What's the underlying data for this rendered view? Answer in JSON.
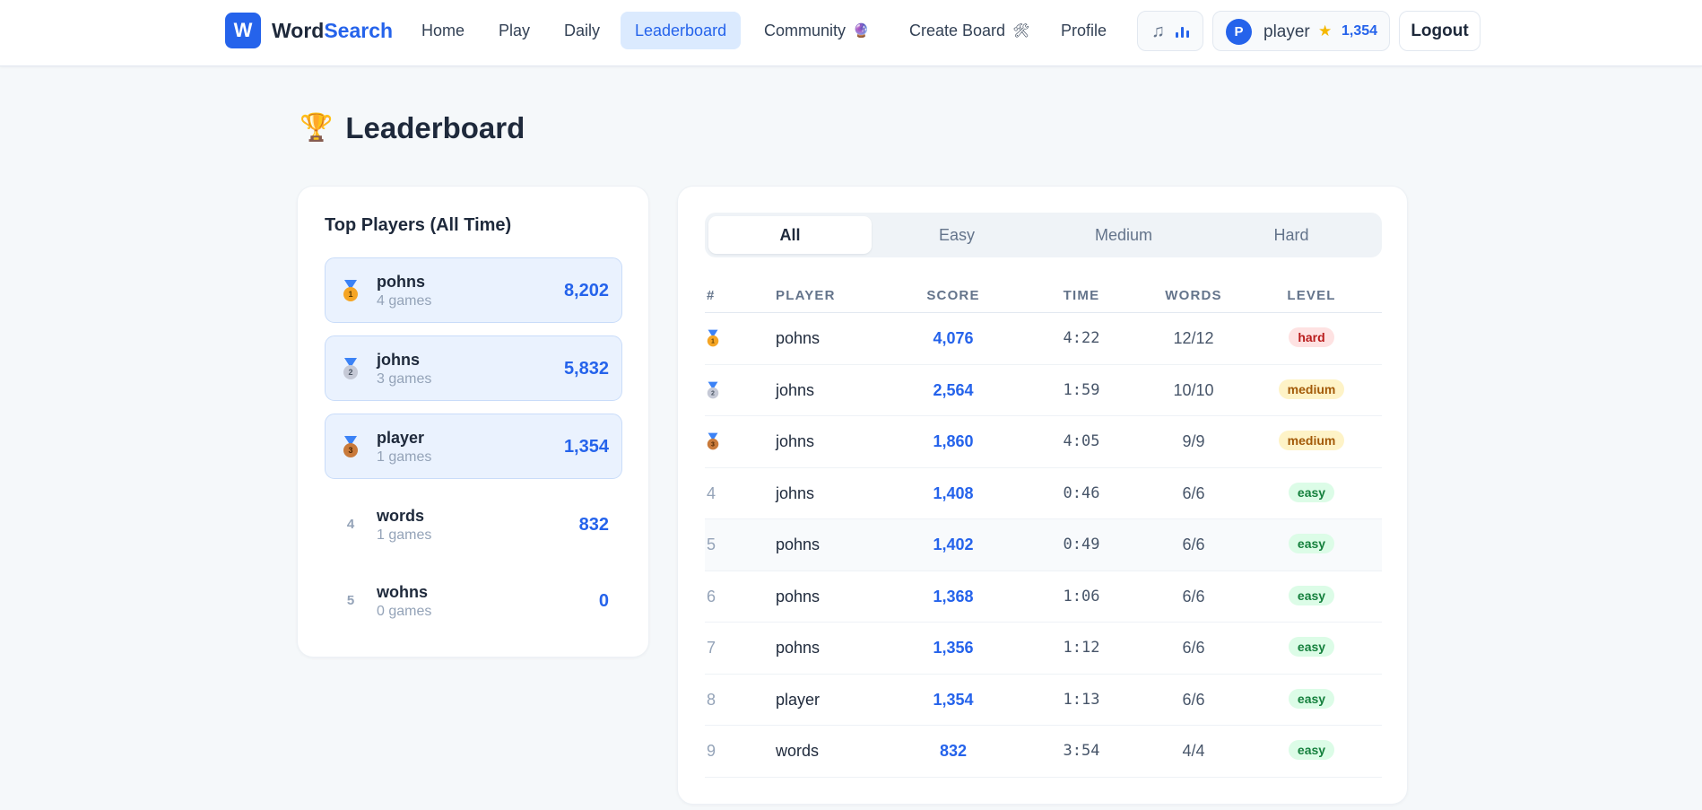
{
  "app": {
    "logo_letter": "W",
    "name_part1": "Word",
    "name_part2": "Search",
    "brand_color": "#2563eb"
  },
  "nav": {
    "items": [
      {
        "label": "Home",
        "emoji": ""
      },
      {
        "label": "Play",
        "emoji": ""
      },
      {
        "label": "Daily",
        "emoji": ""
      },
      {
        "label": "Leaderboard",
        "emoji": "",
        "active": true
      },
      {
        "label": "Community",
        "emoji": "🔮"
      },
      {
        "label": "Create Board",
        "emoji": "🛠"
      },
      {
        "label": "Profile",
        "emoji": ""
      }
    ],
    "music_icon": "music-note-icon",
    "equalizer_icon": "equalizer-icon"
  },
  "user": {
    "avatar_letter": "P",
    "name": "player",
    "star_icon": "star-icon",
    "score": "1,354"
  },
  "logout_label": "Logout",
  "page": {
    "title": "Leaderboard",
    "icon": "trophy-icon"
  },
  "top_players": {
    "title": "Top Players (All Time)",
    "items": [
      {
        "rank": "1",
        "medal": "gold",
        "name": "pohns",
        "games": "4 games",
        "score": "8,202"
      },
      {
        "rank": "2",
        "medal": "silver",
        "name": "johns",
        "games": "3 games",
        "score": "5,832"
      },
      {
        "rank": "3",
        "medal": "bronze",
        "name": "player",
        "games": "1 games",
        "score": "1,354"
      },
      {
        "rank": "4",
        "medal": "",
        "name": "words",
        "games": "1 games",
        "score": "832"
      },
      {
        "rank": "5",
        "medal": "",
        "name": "wohns",
        "games": "0 games",
        "score": "0"
      }
    ]
  },
  "filters": {
    "tabs": [
      "All",
      "Easy",
      "Medium",
      "Hard"
    ],
    "active": "All"
  },
  "table": {
    "headers": {
      "rank": "#",
      "player": "PLAYER",
      "score": "SCORE",
      "time": "TIME",
      "words": "WORDS",
      "level": "LEVEL"
    },
    "rows": [
      {
        "rank": "1",
        "medal": "gold",
        "player": "pohns",
        "score": "4,076",
        "time": "4:22",
        "words": "12/12",
        "level": "hard"
      },
      {
        "rank": "2",
        "medal": "silver",
        "player": "johns",
        "score": "2,564",
        "time": "1:59",
        "words": "10/10",
        "level": "medium"
      },
      {
        "rank": "3",
        "medal": "bronze",
        "player": "johns",
        "score": "1,860",
        "time": "4:05",
        "words": "9/9",
        "level": "medium"
      },
      {
        "rank": "4",
        "medal": "",
        "player": "johns",
        "score": "1,408",
        "time": "0:46",
        "words": "6/6",
        "level": "easy"
      },
      {
        "rank": "5",
        "medal": "",
        "player": "pohns",
        "score": "1,402",
        "time": "0:49",
        "words": "6/6",
        "level": "easy",
        "hover": true
      },
      {
        "rank": "6",
        "medal": "",
        "player": "pohns",
        "score": "1,368",
        "time": "1:06",
        "words": "6/6",
        "level": "easy"
      },
      {
        "rank": "7",
        "medal": "",
        "player": "pohns",
        "score": "1,356",
        "time": "1:12",
        "words": "6/6",
        "level": "easy"
      },
      {
        "rank": "8",
        "medal": "",
        "player": "player",
        "score": "1,354",
        "time": "1:13",
        "words": "6/6",
        "level": "easy"
      },
      {
        "rank": "9",
        "medal": "",
        "player": "words",
        "score": "832",
        "time": "3:54",
        "words": "4/4",
        "level": "easy"
      }
    ]
  }
}
